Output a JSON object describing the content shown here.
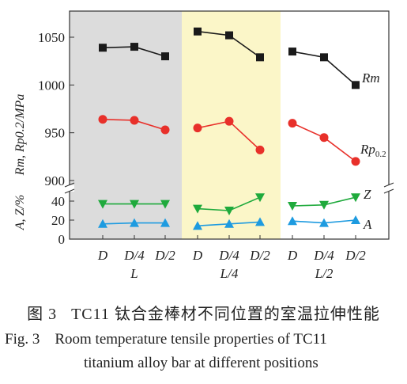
{
  "caption": {
    "zh_label": "图 3",
    "zh_text": "TC11 钛合金棒材不同位置的室温拉伸性能",
    "en_label": "Fig. 3",
    "en_text_line1": "Room temperature tensile properties of TC11",
    "en_text_line2": "titanium alloy bar at different positions"
  },
  "chart_data": [
    {
      "type": "line",
      "panel": "top",
      "ylabel": "Rm, Rp0.2/MPa",
      "ylim": [
        895,
        1070
      ],
      "yticks": [
        900,
        950,
        1000,
        1050
      ],
      "groups": [
        {
          "name": "L",
          "categories": [
            "D",
            "D/4",
            "D/2"
          ],
          "background": "#dcdcdc"
        },
        {
          "name": "L/4",
          "categories": [
            "D",
            "D/4",
            "D/2"
          ],
          "background": "#fbf6c8"
        },
        {
          "name": "L/2",
          "categories": [
            "D",
            "D/4",
            "D/2"
          ],
          "background": "#ffffff"
        }
      ],
      "series": [
        {
          "name": "Rm",
          "color": "#1a1a1a",
          "marker": "square",
          "values": [
            [
              1039,
              1040,
              1030
            ],
            [
              1056,
              1052,
              1029
            ],
            [
              1035,
              1029,
              1000
            ]
          ]
        },
        {
          "name": "Rp0.2",
          "color": "#e8302a",
          "marker": "circle",
          "values": [
            [
              964,
              963,
              953
            ],
            [
              955,
              962,
              932
            ],
            [
              960,
              945,
              920
            ]
          ]
        }
      ]
    },
    {
      "type": "line",
      "panel": "bottom",
      "ylabel": "A, Z/%",
      "ylim": [
        0,
        50
      ],
      "yticks": [
        0,
        20,
        40
      ],
      "series": [
        {
          "name": "Z",
          "color": "#1faa3c",
          "marker": "triangle-down",
          "values": [
            [
              37,
              37,
              37
            ],
            [
              32,
              30,
              44
            ],
            [
              35,
              36,
              44
            ]
          ]
        },
        {
          "name": "A",
          "color": "#1e9be0",
          "marker": "triangle-up",
          "values": [
            [
              16,
              17,
              17
            ],
            [
              14,
              16,
              18
            ],
            [
              19,
              17,
              20
            ]
          ]
        }
      ]
    }
  ]
}
